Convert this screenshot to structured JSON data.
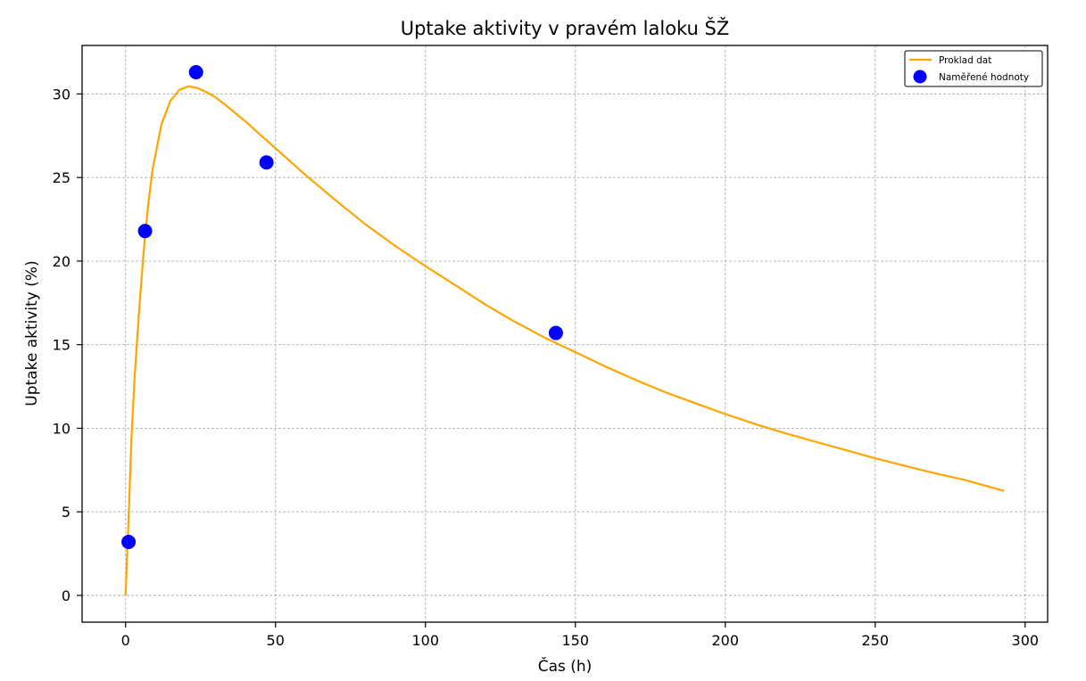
{
  "chart_data": {
    "type": "line",
    "title": "Uptake aktivity v pravém laloku ŠŽ",
    "xlabel": "Čas (h)",
    "ylabel": "Uptake aktivity (%)",
    "xlim": [
      -14.5,
      307.5
    ],
    "ylim": [
      -1.6,
      32.9
    ],
    "xticks": [
      0,
      50,
      100,
      150,
      200,
      250,
      300
    ],
    "yticks": [
      0,
      5,
      10,
      15,
      20,
      25,
      30
    ],
    "grid": true,
    "legend": "top-right",
    "fit": {
      "name": "Proklad dat",
      "color": "#FFA500",
      "x": [
        0,
        1,
        2,
        3,
        4.5,
        6,
        7.5,
        9,
        12,
        15,
        18,
        21,
        24,
        27,
        30,
        35,
        40,
        50,
        60,
        70,
        80,
        90,
        100,
        110,
        120,
        130,
        140,
        150,
        160,
        170,
        180,
        190,
        200,
        210,
        220,
        230,
        240,
        250,
        260,
        270,
        280,
        293
      ],
      "y": [
        0,
        4.6,
        9.5,
        13.0,
        17.0,
        20.5,
        23.3,
        25.5,
        28.2,
        29.6,
        30.25,
        30.45,
        30.35,
        30.1,
        29.8,
        29.1,
        28.35,
        26.75,
        25.15,
        23.65,
        22.2,
        20.9,
        19.7,
        18.55,
        17.4,
        16.35,
        15.4,
        14.55,
        13.7,
        12.9,
        12.15,
        11.5,
        10.85,
        10.25,
        9.7,
        9.2,
        8.7,
        8.2,
        7.75,
        7.3,
        6.9,
        6.25
      ]
    },
    "measured": {
      "name": "Naměřené hodnoty",
      "color": "#0000FF",
      "x": [
        1,
        6.5,
        23.5,
        47,
        143.5
      ],
      "y": [
        3.2,
        21.8,
        31.3,
        25.9,
        15.7
      ]
    }
  }
}
